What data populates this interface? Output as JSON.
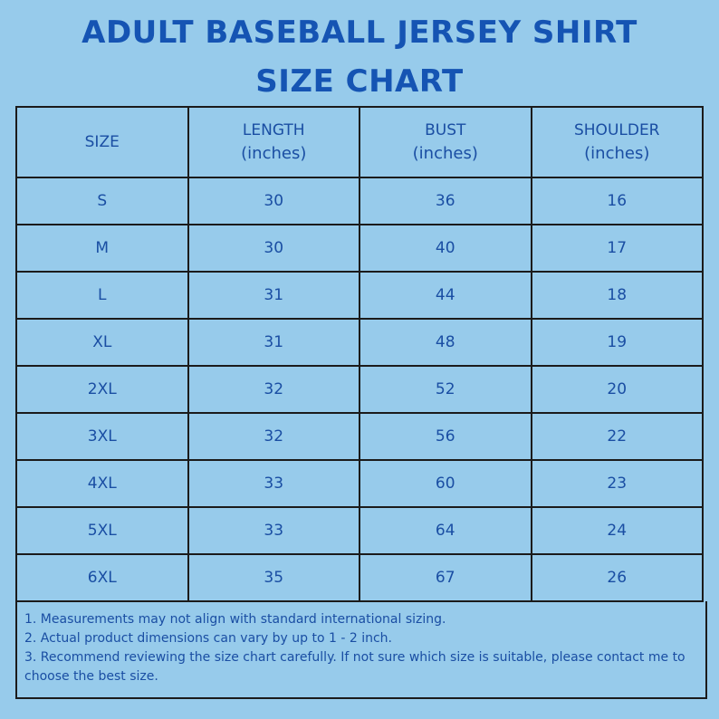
{
  "title": {
    "line1": "ADULT BASEBALL JERSEY SHIRT",
    "line2": "SIZE CHART"
  },
  "table": {
    "headers": [
      {
        "label": "SIZE",
        "unit": ""
      },
      {
        "label": "LENGTH",
        "unit": "(inches)"
      },
      {
        "label": "BUST",
        "unit": "(inches)"
      },
      {
        "label": "SHOULDER",
        "unit": "(inches)"
      }
    ],
    "rows": [
      [
        "S",
        "30",
        "36",
        "16"
      ],
      [
        "M",
        "30",
        "40",
        "17"
      ],
      [
        "L",
        "31",
        "44",
        "18"
      ],
      [
        "XL",
        "31",
        "48",
        "19"
      ],
      [
        "2XL",
        "32",
        "52",
        "20"
      ],
      [
        "3XL",
        "32",
        "56",
        "22"
      ],
      [
        "4XL",
        "33",
        "60",
        "23"
      ],
      [
        "5XL",
        "33",
        "64",
        "24"
      ],
      [
        "6XL",
        "35",
        "67",
        "26"
      ]
    ]
  },
  "notes": [
    "1. Measurements may not align with standard international sizing.",
    "2. Actual product dimensions can vary by up to 1 - 2 inch.",
    "3. Recommend reviewing the size chart carefully. If not sure which size is suitable, please contact me to choose the best size."
  ],
  "colors": {
    "background": "#97cbeb",
    "title": "#1554b3",
    "text": "#1a4ea3",
    "border": "#1b1b1b"
  }
}
